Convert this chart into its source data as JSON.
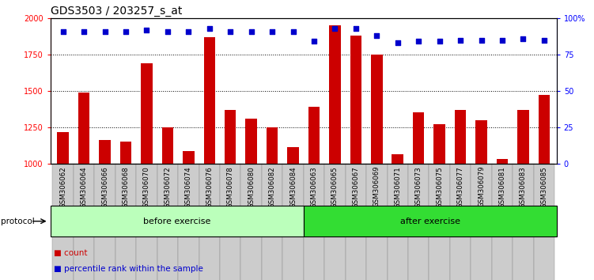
{
  "title": "GDS3503 / 203257_s_at",
  "categories": [
    "GSM306062",
    "GSM306064",
    "GSM306066",
    "GSM306068",
    "GSM306070",
    "GSM306072",
    "GSM306074",
    "GSM306076",
    "GSM306078",
    "GSM306080",
    "GSM306082",
    "GSM306084",
    "GSM306063",
    "GSM306065",
    "GSM306067",
    "GSM306069",
    "GSM306071",
    "GSM306073",
    "GSM306075",
    "GSM306077",
    "GSM306079",
    "GSM306081",
    "GSM306083",
    "GSM306085"
  ],
  "counts": [
    1220,
    1490,
    1165,
    1150,
    1690,
    1250,
    1090,
    1870,
    1370,
    1310,
    1250,
    1115,
    1390,
    1950,
    1880,
    1750,
    1065,
    1355,
    1270,
    1370,
    1300,
    1035,
    1370,
    1475
  ],
  "percentile_ranks": [
    91,
    91,
    91,
    91,
    92,
    91,
    91,
    93,
    91,
    91,
    91,
    91,
    84,
    93,
    93,
    88,
    83,
    84,
    84,
    85,
    85,
    85,
    86,
    85
  ],
  "before_count": 12,
  "after_count": 12,
  "before_label": "before exercise",
  "after_label": "after exercise",
  "protocol_label": "protocol",
  "bar_color": "#cc0000",
  "dot_color": "#0000cc",
  "before_bg": "#bbffbb",
  "after_bg": "#33dd33",
  "xtick_bg": "#cccccc",
  "legend_count_label": "count",
  "legend_pct_label": "percentile rank within the sample"
}
